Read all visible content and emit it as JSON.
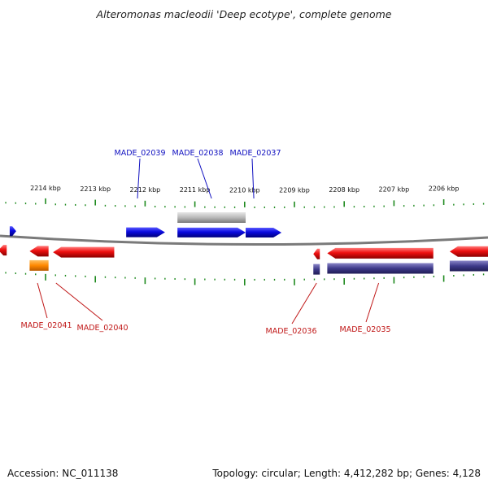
{
  "title": "Alteromonas macleodii 'Deep ecotype', complete genome",
  "footer": {
    "accession": "Accession: NC_011138",
    "summary": "Topology: circular; Length: 4,412,282 bp; Genes: 4,128"
  },
  "colors": {
    "forward_gene": "#0a0adf",
    "reverse_gene": "#ee0f0f",
    "rna_orange": "#ff8800",
    "reverse_cds_purple": "#3e3a8a",
    "pseudo_gray": "#b9b9b9",
    "backbone": "#7a7a7a",
    "tick": "#1f8a1f",
    "label_forward": "#1010c0",
    "label_reverse": "#c01818"
  },
  "scale": {
    "unit": "kbp",
    "major_ticks": [
      {
        "kbp": 2214,
        "label": "2214 kbp"
      },
      {
        "kbp": 2213,
        "label": "2213 kbp"
      },
      {
        "kbp": 2212,
        "label": "2212 kbp"
      },
      {
        "kbp": 2211,
        "label": "2211 kbp"
      },
      {
        "kbp": 2210,
        "label": "2210 kbp"
      },
      {
        "kbp": 2209,
        "label": "2209 kbp"
      },
      {
        "kbp": 2208,
        "label": "2208 kbp"
      },
      {
        "kbp": 2207,
        "label": "2207 kbp"
      },
      {
        "kbp": 2206,
        "label": "2206 kbp"
      }
    ]
  },
  "forward_features": [
    {
      "start": 2214.72,
      "end": 2214.59,
      "type": "gene",
      "label": ""
    },
    {
      "start": 2212.38,
      "end": 2211.6,
      "type": "gene",
      "label": "MADE_02039"
    },
    {
      "start": 2211.35,
      "end": 2209.98,
      "type": "gene",
      "label": "MADE_02038"
    },
    {
      "start": 2209.98,
      "end": 2209.26,
      "type": "gene",
      "label": "MADE_02037"
    },
    {
      "start": 2211.35,
      "end": 2209.98,
      "type": "pseudo",
      "label": ""
    }
  ],
  "reverse_features": [
    {
      "start": 2215.0,
      "end": 2214.78,
      "type": "gene",
      "label": ""
    },
    {
      "start": 2214.32,
      "end": 2213.94,
      "type": "gene",
      "label": "MADE_02041"
    },
    {
      "start": 2214.32,
      "end": 2213.94,
      "type": "rna",
      "label": ""
    },
    {
      "start": 2213.85,
      "end": 2212.62,
      "type": "gene",
      "label": "MADE_02040"
    },
    {
      "start": 2208.62,
      "end": 2208.49,
      "type": "gene",
      "label": "MADE_02036"
    },
    {
      "start": 2208.62,
      "end": 2208.49,
      "type": "cds",
      "label": ""
    },
    {
      "start": 2208.34,
      "end": 2206.21,
      "type": "gene",
      "label": "MADE_02035"
    },
    {
      "start": 2208.34,
      "end": 2206.21,
      "type": "cds",
      "label": ""
    },
    {
      "start": 2205.88,
      "end": 2204.8,
      "type": "gene",
      "label": ""
    },
    {
      "start": 2205.88,
      "end": 2204.8,
      "type": "cds",
      "label": ""
    }
  ]
}
